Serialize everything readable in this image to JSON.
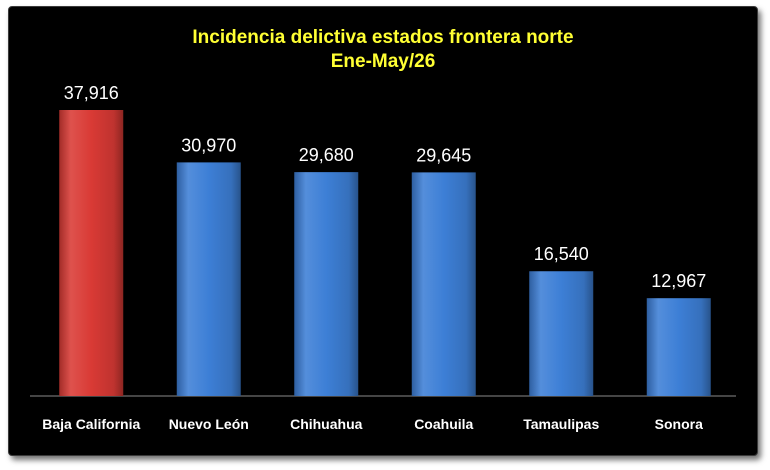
{
  "chart_data": {
    "type": "bar",
    "title": "Incidencia delictiva estados frontera norte",
    "subtitle": "Ene-May/26",
    "categories": [
      "Baja California",
      "Nuevo León",
      "Chihuahua",
      "Coahuila",
      "Tamaulipas",
      "Sonora"
    ],
    "values": [
      37916,
      30970,
      29680,
      29645,
      16540,
      12967
    ],
    "data_labels": [
      "37,916",
      "30,970",
      "29,680",
      "29,645",
      "16,540",
      "12,967"
    ],
    "bar_colors": [
      "#d93a35",
      "#3d7fd6",
      "#3d7fd6",
      "#3d7fd6",
      "#3d7fd6",
      "#3d7fd6"
    ],
    "highlight_color": "#d93a35",
    "bar_color": "#3d7fd6",
    "title_color": "#ffff33",
    "background": "#000000",
    "label_color": "#ffffff",
    "ylim": [
      0,
      40000
    ],
    "grid": false,
    "legend": "none",
    "xlabel": "",
    "ylabel": ""
  }
}
